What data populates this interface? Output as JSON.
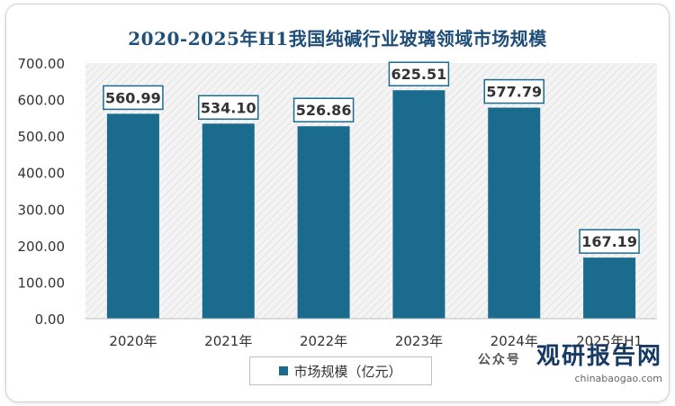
{
  "chart_data": {
    "type": "bar",
    "title": "2020-2025年H1我国纯碱行业玻璃领域市场规模",
    "categories": [
      "2020年",
      "2021年",
      "2022年",
      "2023年",
      "2024年",
      "2025年H1"
    ],
    "series": [
      {
        "name": "市场规模（亿元）",
        "values": [
          560.99,
          534.1,
          526.86,
          625.51,
          577.79,
          167.19
        ]
      }
    ],
    "value_labels": [
      "560.99",
      "534.10",
      "526.86",
      "625.51",
      "577.79",
      "167.19"
    ],
    "yticks": [
      "0.00",
      "100.00",
      "200.00",
      "300.00",
      "400.00",
      "500.00",
      "600.00",
      "700.00"
    ],
    "ylim": [
      0,
      700
    ],
    "legend_position": "bottom",
    "bar_color": "#1a6b8e",
    "grid": false
  },
  "watermark": {
    "brand": "观研报告网",
    "site": "chinabaogao.com",
    "prefix": "公众号"
  }
}
